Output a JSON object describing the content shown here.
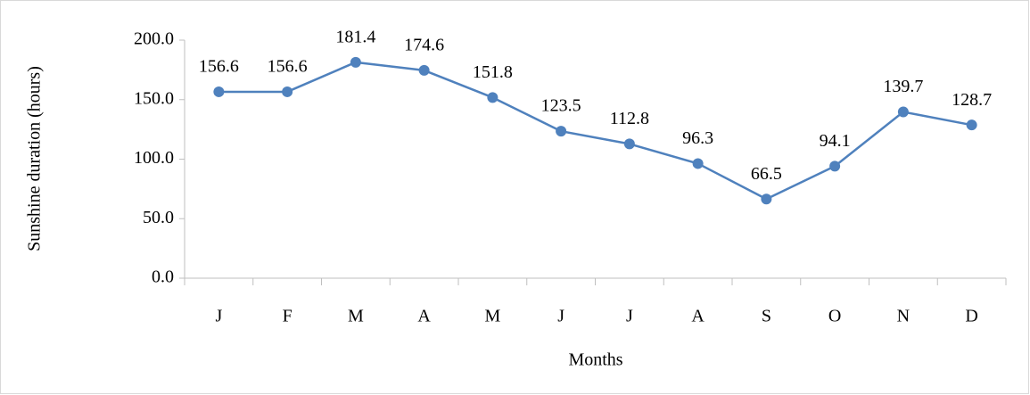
{
  "chart_data": {
    "type": "line",
    "categories": [
      "J",
      "F",
      "M",
      "A",
      "M",
      "J",
      "J",
      "A",
      "S",
      "O",
      "N",
      "D"
    ],
    "values": [
      156.6,
      156.6,
      181.4,
      174.6,
      151.8,
      123.5,
      112.8,
      96.3,
      66.5,
      94.1,
      139.7,
      128.7
    ],
    "color": "#4f81bd",
    "x_label": "Months",
    "y_label": "Sunshine duration  (hours)",
    "ylim": [
      0,
      200
    ],
    "yticks": [
      {
        "value": 0,
        "label": "0.0"
      },
      {
        "value": 50,
        "label": "50.0"
      },
      {
        "value": 100,
        "label": "100.0"
      },
      {
        "value": 150,
        "label": "150.0"
      },
      {
        "value": 200,
        "label": "200.0"
      }
    ],
    "grid": false
  }
}
